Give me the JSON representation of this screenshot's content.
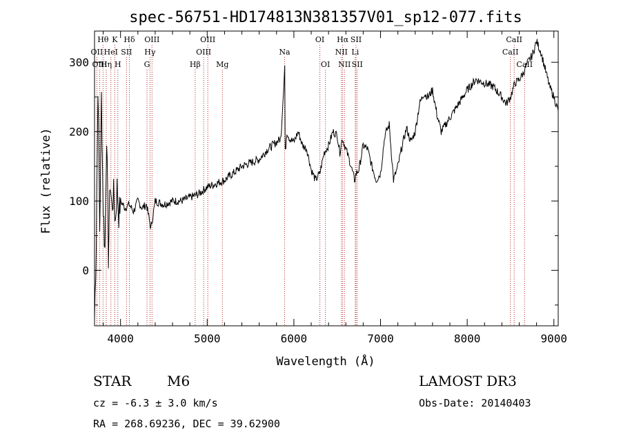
{
  "chart_data": {
    "type": "line",
    "title": "spec-56751-HD174813N381357V01_sp12-077.fits",
    "xlabel": "Wavelength (Å)",
    "ylabel": "Flux (relative)",
    "xlim": [
      3700,
      9050
    ],
    "ylim": [
      -80,
      345
    ],
    "xticks": [
      4000,
      5000,
      6000,
      7000,
      8000,
      9000
    ],
    "yticks": [
      0,
      100,
      200,
      300
    ],
    "series": [
      {
        "name": "flux",
        "x": [
          3700,
          3720,
          3740,
          3760,
          3780,
          3800,
          3820,
          3840,
          3860,
          3880,
          3900,
          3920,
          3940,
          3960,
          3980,
          4000,
          4050,
          4100,
          4150,
          4200,
          4250,
          4300,
          4350,
          4400,
          4500,
          4600,
          4700,
          4800,
          4900,
          5000,
          5100,
          5200,
          5300,
          5400,
          5500,
          5600,
          5700,
          5800,
          5850,
          5880,
          5895,
          5900,
          5920,
          5950,
          6000,
          6050,
          6100,
          6150,
          6200,
          6250,
          6300,
          6350,
          6400,
          6450,
          6500,
          6530,
          6560,
          6600,
          6650,
          6700,
          6720,
          6750,
          6800,
          6850,
          6900,
          6950,
          7000,
          7050,
          7100,
          7150,
          7200,
          7250,
          7300,
          7350,
          7400,
          7450,
          7500,
          7550,
          7600,
          7650,
          7700,
          7750,
          7800,
          7900,
          8000,
          8100,
          8200,
          8300,
          8400,
          8450,
          8500,
          8550,
          8600,
          8650,
          8700,
          8750,
          8800,
          8850,
          8900,
          8950,
          9000,
          9050
        ],
        "y": [
          -70,
          40,
          270,
          60,
          250,
          90,
          30,
          200,
          20,
          130,
          90,
          110,
          70,
          120,
          80,
          100,
          90,
          95,
          85,
          100,
          90,
          95,
          60,
          100,
          95,
          100,
          100,
          105,
          110,
          120,
          125,
          130,
          140,
          150,
          155,
          160,
          175,
          185,
          190,
          260,
          295,
          170,
          200,
          190,
          185,
          200,
          180,
          175,
          145,
          130,
          140,
          170,
          180,
          200,
          195,
          170,
          190,
          175,
          155,
          130,
          140,
          145,
          180,
          175,
          150,
          130,
          140,
          195,
          210,
          130,
          150,
          180,
          205,
          185,
          200,
          240,
          255,
          250,
          260,
          225,
          200,
          210,
          220,
          240,
          260,
          275,
          270,
          265,
          250,
          240,
          250,
          270,
          275,
          285,
          300,
          310,
          330,
          315,
          290,
          265,
          250,
          230
        ],
        "approx": true
      }
    ],
    "spectral_lines": [
      {
        "label": "Hθ",
        "x": 3798,
        "row": 0
      },
      {
        "label": "Hη",
        "x": 3835,
        "row": 2
      },
      {
        "label": "OII",
        "x": 3727,
        "row": 1
      },
      {
        "label": "OIII",
        "x": 3760,
        "row": 2
      },
      {
        "label": "HeI",
        "x": 3889,
        "row": 1
      },
      {
        "label": "K",
        "x": 3934,
        "row": 0
      },
      {
        "label": "H",
        "x": 3969,
        "row": 2
      },
      {
        "label": "SII",
        "x": 4069,
        "row": 1
      },
      {
        "label": "Hδ",
        "x": 4102,
        "row": 0
      },
      {
        "label": "OIII",
        "x": 4363,
        "row": 0
      },
      {
        "label": "Hγ",
        "x": 4340,
        "row": 1
      },
      {
        "label": "G",
        "x": 4305,
        "row": 2
      },
      {
        "label": "Hβ",
        "x": 4861,
        "row": 2
      },
      {
        "label": "OIII",
        "x": 5007,
        "row": 0
      },
      {
        "label": "OIII",
        "x": 4959,
        "row": 1
      },
      {
        "label": "Mg",
        "x": 5175,
        "row": 2
      },
      {
        "label": "Na",
        "x": 5893,
        "row": 1
      },
      {
        "label": "OI",
        "x": 6300,
        "row": 0
      },
      {
        "label": "OI",
        "x": 6364,
        "row": 2
      },
      {
        "label": "Hα",
        "x": 6563,
        "row": 0
      },
      {
        "label": "NII",
        "x": 6548,
        "row": 1
      },
      {
        "label": "NII",
        "x": 6584,
        "row": 2
      },
      {
        "label": "SII",
        "x": 6717,
        "row": 0
      },
      {
        "label": "Li",
        "x": 6708,
        "row": 1
      },
      {
        "label": "SII",
        "x": 6731,
        "row": 2
      },
      {
        "label": "CaII",
        "x": 8542,
        "row": 0
      },
      {
        "label": "CaII",
        "x": 8498,
        "row": 1
      },
      {
        "label": "CaII",
        "x": 8662,
        "row": 2
      }
    ]
  },
  "info": {
    "class": "STAR",
    "subclass": "M6",
    "survey": "LAMOST DR3",
    "cz": "cz = -6.3 ± 3.0 km/s",
    "obs_date": "Obs-Date: 20140403",
    "coords": "RA = 268.69236, DEC =  39.62900"
  }
}
